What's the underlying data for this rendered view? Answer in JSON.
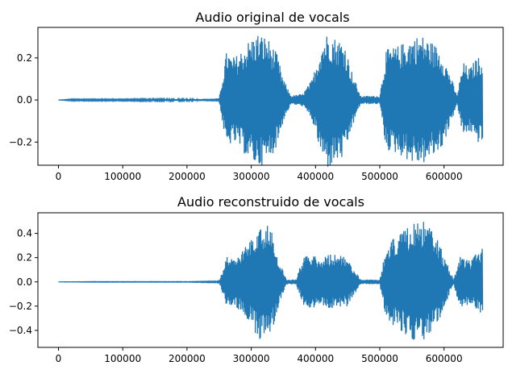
{
  "chart_data": [
    {
      "type": "line",
      "title": "Audio original de vocals",
      "xlabel": "",
      "ylabel": "",
      "xlim": [
        -32000,
        692000
      ],
      "ylim": [
        -0.31,
        0.345
      ],
      "xticks": [
        0,
        100000,
        200000,
        300000,
        400000,
        500000,
        600000
      ],
      "xtick_labels": [
        "0",
        "100000",
        "200000",
        "300000",
        "400000",
        "500000",
        "600000"
      ],
      "yticks": [
        -0.2,
        0.0,
        0.2
      ],
      "ytick_labels": [
        "−0.2",
        "0.0",
        "0.2"
      ],
      "grid": false,
      "color": "#1f77b4",
      "series": [
        {
          "x": [
            0,
            20000,
            50000,
            100000,
            150000,
            200000,
            250000,
            262000,
            270000,
            280000,
            295000,
            310000,
            325000,
            340000,
            350000,
            362000,
            380000,
            395000,
            410000,
            420000,
            430000,
            445000,
            455000,
            470000,
            490000,
            500000,
            510000,
            530000,
            550000,
            565000,
            580000,
            595000,
            610000,
            620000,
            630000,
            640000,
            650000,
            660000
          ],
          "envelope": [
            0.0,
            0.003,
            0.003,
            0.003,
            0.004,
            0.004,
            0.008,
            0.24,
            0.2,
            0.22,
            0.28,
            0.32,
            0.3,
            0.22,
            0.1,
            0.02,
            0.03,
            0.1,
            0.28,
            0.33,
            0.3,
            0.28,
            0.15,
            0.02,
            0.02,
            0.02,
            0.24,
            0.26,
            0.3,
            0.31,
            0.28,
            0.24,
            0.12,
            0.02,
            0.18,
            0.15,
            0.2,
            0.21
          ]
        }
      ]
    },
    {
      "type": "line",
      "title": "Audio reconstruido de vocals",
      "xlabel": "",
      "ylabel": "",
      "xlim": [
        -32000,
        692000
      ],
      "ylim": [
        -0.54,
        0.57
      ],
      "xticks": [
        0,
        100000,
        200000,
        300000,
        400000,
        500000,
        600000
      ],
      "xtick_labels": [
        "0",
        "100000",
        "200000",
        "300000",
        "400000",
        "500000",
        "600000"
      ],
      "yticks": [
        -0.4,
        -0.2,
        0.0,
        0.2,
        0.4
      ],
      "ytick_labels": [
        "−0.4",
        "−0.2",
        "0.0",
        "0.2",
        "0.4"
      ],
      "grid": false,
      "color": "#1f77b4",
      "series": [
        {
          "x": [
            0,
            50000,
            100000,
            150000,
            200000,
            250000,
            262000,
            275000,
            290000,
            305000,
            315000,
            330000,
            345000,
            355000,
            370000,
            380000,
            395000,
            410000,
            425000,
            435000,
            450000,
            470000,
            490000,
            500000,
            510000,
            525000,
            545000,
            560000,
            575000,
            590000,
            605000,
            615000,
            625000,
            640000,
            655000,
            660000
          ],
          "envelope": [
            0.0,
            0.002,
            0.002,
            0.002,
            0.002,
            0.005,
            0.22,
            0.2,
            0.28,
            0.42,
            0.5,
            0.45,
            0.15,
            0.02,
            0.02,
            0.2,
            0.24,
            0.2,
            0.24,
            0.22,
            0.2,
            0.02,
            0.02,
            0.02,
            0.3,
            0.38,
            0.45,
            0.52,
            0.48,
            0.35,
            0.15,
            0.02,
            0.22,
            0.18,
            0.28,
            0.3
          ]
        }
      ]
    }
  ]
}
